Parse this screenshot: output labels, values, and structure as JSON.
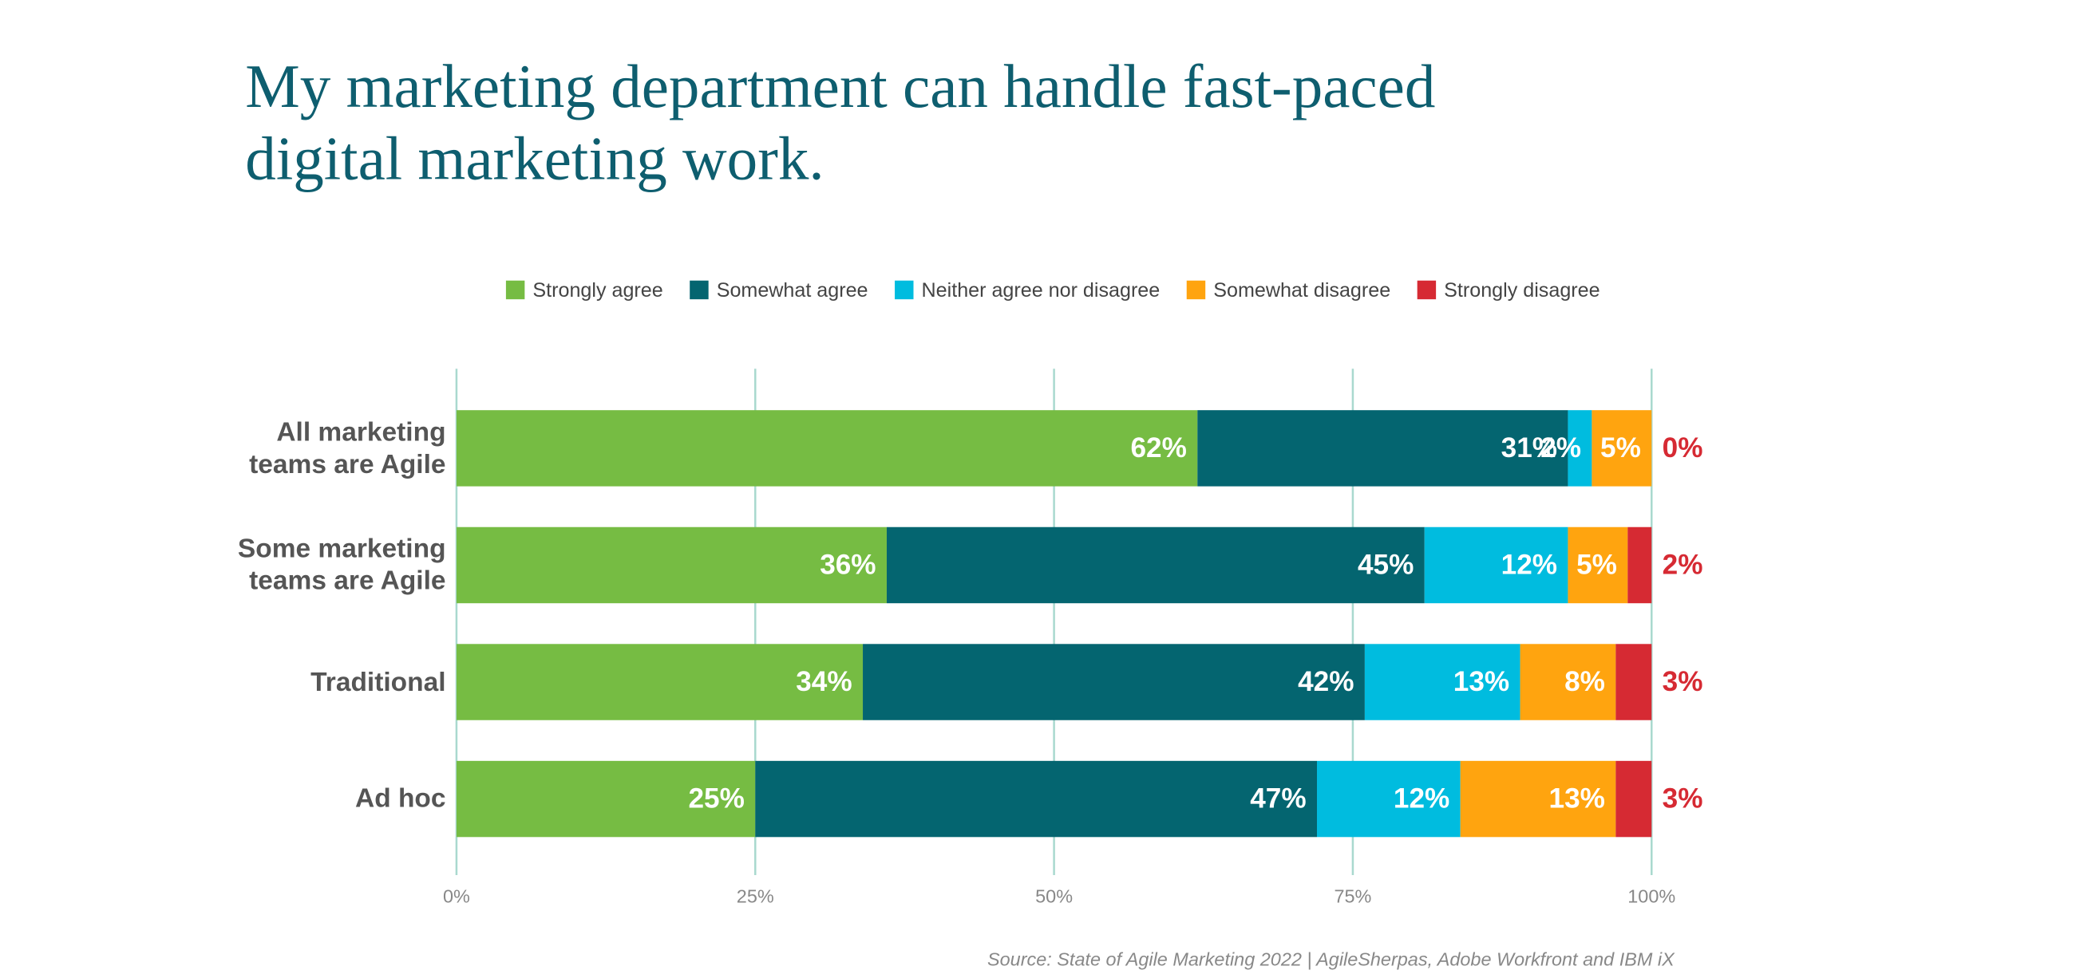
{
  "chart_data": {
    "type": "stacked-bar-horizontal",
    "title": "My marketing department can handle fast-paced digital marketing work.",
    "source": "Source: State of Agile Marketing 2022 | AgileSherpas, Adobe Workfront and IBM iX",
    "categories": [
      "All marketing teams are Agile",
      "Some marketing teams are Agile",
      "Traditional",
      "Ad hoc"
    ],
    "series": [
      {
        "name": "Strongly agree",
        "color": "#76bc43",
        "values": [
          62,
          36,
          34,
          25
        ],
        "value_labels": [
          "62%",
          "36%",
          "34%",
          "25%"
        ]
      },
      {
        "name": "Somewhat agree",
        "color": "#046570",
        "values": [
          31,
          45,
          42,
          47
        ],
        "value_labels": [
          "31%",
          "45%",
          "42%",
          "47%"
        ]
      },
      {
        "name": "Neither agree nor disagree",
        "color": "#00bcdf",
        "values": [
          2,
          12,
          13,
          12
        ],
        "value_labels": [
          "2%",
          "12%",
          "13%",
          "12%"
        ]
      },
      {
        "name": "Somewhat disagree",
        "color": "#ffa40f",
        "values": [
          5,
          5,
          8,
          13
        ],
        "value_labels": [
          "5%",
          "5%",
          "8%",
          "13%"
        ]
      },
      {
        "name": "Strongly disagree",
        "color": "#d62a33",
        "values": [
          0,
          2,
          3,
          3
        ],
        "value_labels": [
          "0%",
          "2%",
          "3%",
          "3%"
        ]
      }
    ],
    "xlim": [
      0,
      100
    ],
    "xticks": [
      {
        "value": 0,
        "label": "0%"
      },
      {
        "value": 25,
        "label": "25%"
      },
      {
        "value": 50,
        "label": "50%"
      },
      {
        "value": 75,
        "label": "75%"
      },
      {
        "value": 100,
        "label": "100%"
      }
    ],
    "grid": true
  }
}
